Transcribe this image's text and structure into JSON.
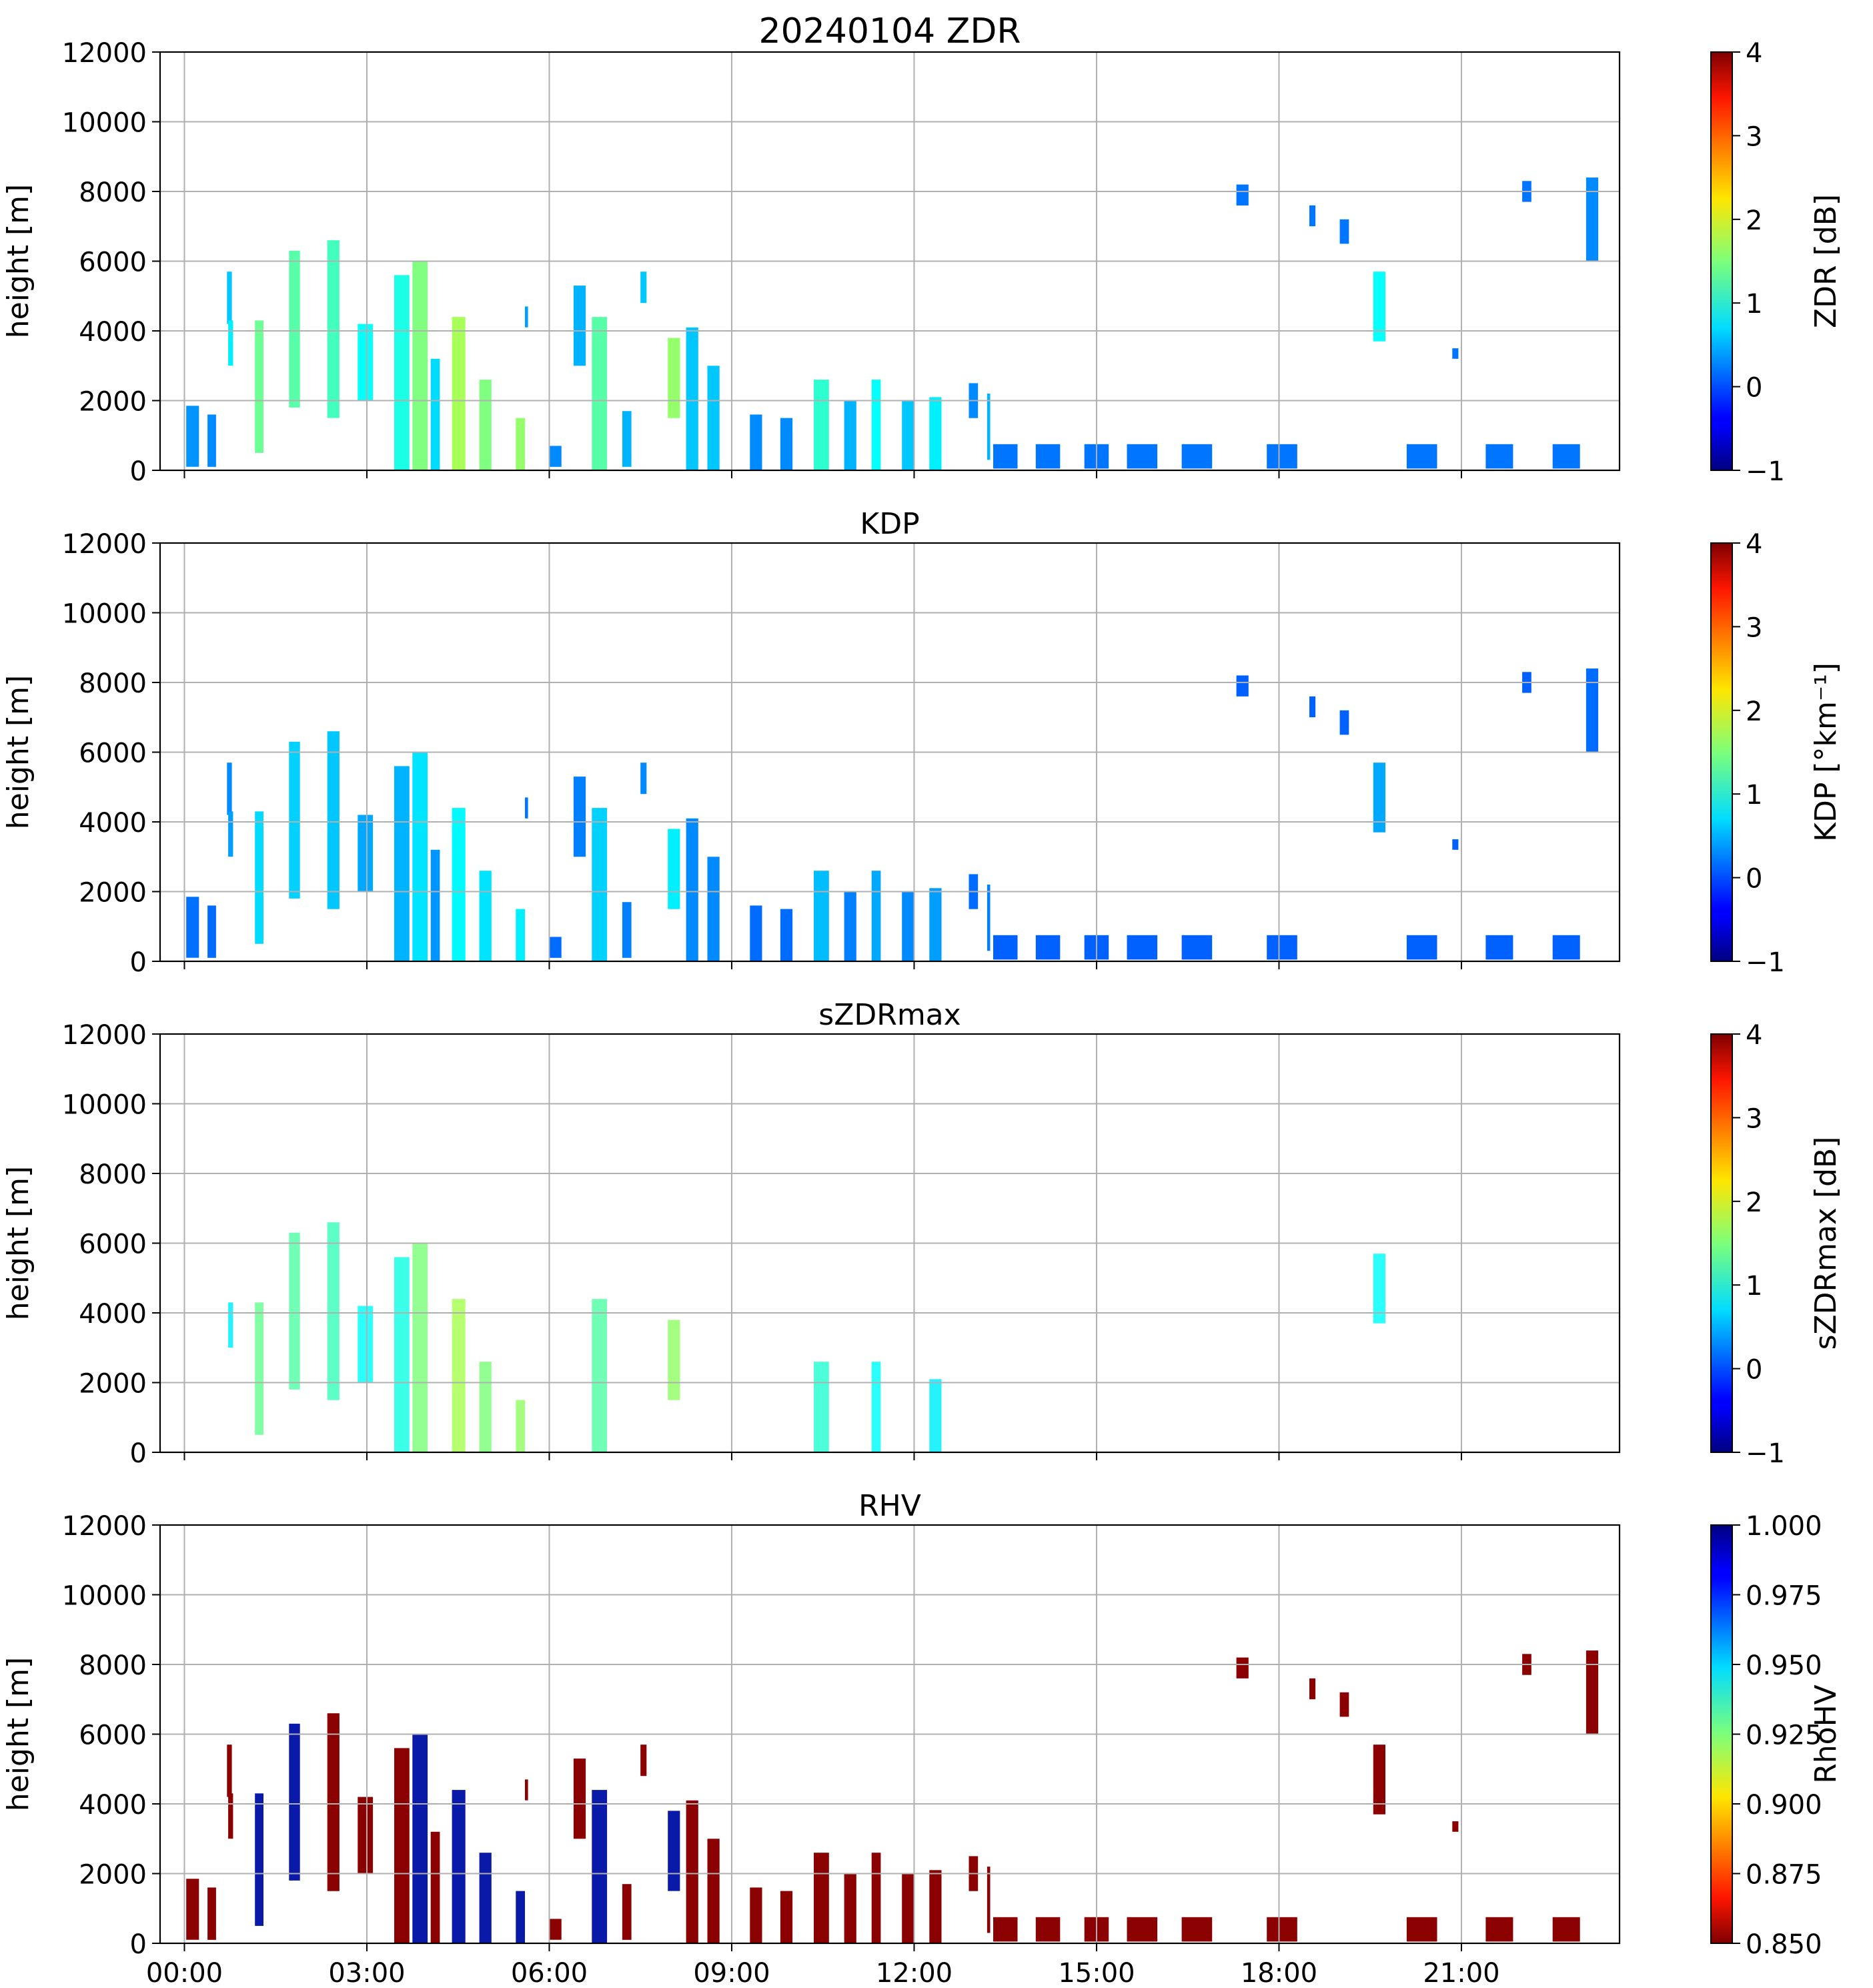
{
  "figure_title": "20240104 ZDR",
  "time_tick_labels": [
    "00:00",
    "03:00",
    "06:00",
    "09:00",
    "12:00",
    "15:00",
    "18:00",
    "21:00"
  ],
  "chart_data": [
    {
      "type": "heatmap",
      "title": "20240104 ZDR",
      "xlabel": "",
      "ylabel": "height [m]",
      "ylim": [
        0,
        12000
      ],
      "yticks": [
        "0",
        "2000",
        "4000",
        "6000",
        "8000",
        "10000",
        "12000"
      ],
      "xticks": [
        "00:00",
        "03:00",
        "06:00",
        "09:00",
        "12:00",
        "15:00",
        "18:00",
        "21:00"
      ],
      "grid": true,
      "colorbar": {
        "label": "ZDR [dB]",
        "colormap": "jet",
        "range": [
          -1,
          4
        ],
        "ticks": [
          "−1",
          "0",
          "1",
          "2",
          "3",
          "4"
        ]
      }
    },
    {
      "type": "heatmap",
      "title": "KDP",
      "xlabel": "",
      "ylabel": "height [m]",
      "ylim": [
        0,
        12000
      ],
      "yticks": [
        "0",
        "2000",
        "4000",
        "6000",
        "8000",
        "10000",
        "12000"
      ],
      "xticks": [
        "00:00",
        "03:00",
        "06:00",
        "09:00",
        "12:00",
        "15:00",
        "18:00",
        "21:00"
      ],
      "grid": true,
      "colorbar": {
        "label": "KDP [°km⁻¹]",
        "colormap": "jet",
        "range": [
          -1,
          4
        ],
        "ticks": [
          "−1",
          "0",
          "1",
          "2",
          "3",
          "4"
        ]
      }
    },
    {
      "type": "heatmap",
      "title": "sZDRmax",
      "xlabel": "",
      "ylabel": "height [m]",
      "ylim": [
        0,
        12000
      ],
      "yticks": [
        "0",
        "2000",
        "4000",
        "6000",
        "8000",
        "10000",
        "12000"
      ],
      "xticks": [
        "00:00",
        "03:00",
        "06:00",
        "09:00",
        "12:00",
        "15:00",
        "18:00",
        "21:00"
      ],
      "grid": true,
      "colorbar": {
        "label": "sZDRmax [dB]",
        "colormap": "jet",
        "range": [
          -1,
          4
        ],
        "ticks": [
          "−1",
          "0",
          "1",
          "2",
          "3",
          "4"
        ]
      }
    },
    {
      "type": "heatmap",
      "title": "RHV",
      "xlabel": "",
      "ylabel": "height [m]",
      "ylim": [
        0,
        12000
      ],
      "yticks": [
        "0",
        "2000",
        "4000",
        "6000",
        "8000",
        "10000",
        "12000"
      ],
      "xticks": [
        "00:00",
        "03:00",
        "06:00",
        "09:00",
        "12:00",
        "15:00",
        "18:00",
        "21:00"
      ],
      "grid": true,
      "colorbar": {
        "label": "RhoHV",
        "colormap": "jet_r",
        "range": [
          0.85,
          1.0
        ],
        "ticks": [
          "0.850",
          "0.875",
          "0.900",
          "0.925",
          "0.950",
          "0.975",
          "1.000"
        ]
      }
    }
  ],
  "echo_cells": [
    {
      "t0": 0.03,
      "t1": 0.24,
      "h0": 100,
      "h1": 1850,
      "v": 0.35
    },
    {
      "t0": 0.38,
      "t1": 0.52,
      "h0": 100,
      "h1": 1600,
      "v": 0.3
    },
    {
      "t0": 0.7,
      "t1": 0.78,
      "h0": 4200,
      "h1": 5700,
      "v": 0.6
    },
    {
      "t0": 0.72,
      "t1": 0.8,
      "h0": 3000,
      "h1": 4300,
      "v": 0.8
    },
    {
      "t0": 1.16,
      "t1": 1.3,
      "h0": 500,
      "h1": 4300,
      "v": 1.4
    },
    {
      "t0": 1.72,
      "t1": 1.9,
      "h0": 1800,
      "h1": 6300,
      "v": 1.3
    },
    {
      "t0": 2.35,
      "t1": 2.55,
      "h0": 1500,
      "h1": 6600,
      "v": 1.2
    },
    {
      "t0": 2.85,
      "t1": 3.1,
      "h0": 2000,
      "h1": 4200,
      "v": 0.9
    },
    {
      "t0": 3.45,
      "t1": 3.7,
      "h0": 0,
      "h1": 5600,
      "v": 1.0
    },
    {
      "t0": 3.75,
      "t1": 4.0,
      "h0": 0,
      "h1": 6000,
      "v": 1.5
    },
    {
      "t0": 4.05,
      "t1": 4.2,
      "h0": 0,
      "h1": 3200,
      "v": 0.7
    },
    {
      "t0": 4.4,
      "t1": 4.62,
      "h0": 0,
      "h1": 4400,
      "v": 1.7
    },
    {
      "t0": 4.85,
      "t1": 5.05,
      "h0": 0,
      "h1": 2600,
      "v": 1.5
    },
    {
      "t0": 5.45,
      "t1": 5.6,
      "h0": 0,
      "h1": 1500,
      "v": 1.6
    },
    {
      "t0": 5.6,
      "t1": 5.65,
      "h0": 4100,
      "h1": 4700,
      "v": 0.4
    },
    {
      "t0": 6.0,
      "t1": 6.2,
      "h0": 100,
      "h1": 700,
      "v": 0.3
    },
    {
      "t0": 6.4,
      "t1": 6.6,
      "h0": 3000,
      "h1": 5300,
      "v": 0.5
    },
    {
      "t0": 6.7,
      "t1": 6.95,
      "h0": 0,
      "h1": 4400,
      "v": 1.3
    },
    {
      "t0": 7.2,
      "t1": 7.35,
      "h0": 100,
      "h1": 1700,
      "v": 0.5
    },
    {
      "t0": 7.5,
      "t1": 7.6,
      "h0": 4800,
      "h1": 5700,
      "v": 0.6
    },
    {
      "t0": 7.95,
      "t1": 8.15,
      "h0": 1500,
      "h1": 3800,
      "v": 1.6
    },
    {
      "t0": 8.25,
      "t1": 8.45,
      "h0": 0,
      "h1": 4100,
      "v": 0.6
    },
    {
      "t0": 8.6,
      "t1": 8.8,
      "h0": 0,
      "h1": 3000,
      "v": 0.6
    },
    {
      "t0": 9.3,
      "t1": 9.5,
      "h0": 0,
      "h1": 1600,
      "v": 0.3
    },
    {
      "t0": 9.8,
      "t1": 10.0,
      "h0": 0,
      "h1": 1500,
      "v": 0.3
    },
    {
      "t0": 10.35,
      "t1": 10.6,
      "h0": 0,
      "h1": 2600,
      "v": 1.1
    },
    {
      "t0": 10.85,
      "t1": 11.05,
      "h0": 0,
      "h1": 2000,
      "v": 0.5
    },
    {
      "t0": 11.3,
      "t1": 11.45,
      "h0": 0,
      "h1": 2600,
      "v": 0.9
    },
    {
      "t0": 11.8,
      "t1": 12.0,
      "h0": 0,
      "h1": 2000,
      "v": 0.6
    },
    {
      "t0": 12.25,
      "t1": 12.45,
      "h0": 0,
      "h1": 2100,
      "v": 0.8
    },
    {
      "t0": 12.9,
      "t1": 13.05,
      "h0": 1500,
      "h1": 2500,
      "v": 0.3
    },
    {
      "t0": 13.2,
      "t1": 13.25,
      "h0": 300,
      "h1": 2200,
      "v": 0.5
    },
    {
      "t0": 13.3,
      "t1": 13.7,
      "h0": 50,
      "h1": 750,
      "v": 0.2
    },
    {
      "t0": 14.0,
      "t1": 14.4,
      "h0": 50,
      "h1": 750,
      "v": 0.2
    },
    {
      "t0": 14.8,
      "t1": 15.2,
      "h0": 50,
      "h1": 750,
      "v": 0.2
    },
    {
      "t0": 15.5,
      "t1": 16.0,
      "h0": 50,
      "h1": 750,
      "v": 0.2
    },
    {
      "t0": 16.4,
      "t1": 16.9,
      "h0": 50,
      "h1": 750,
      "v": 0.2
    },
    {
      "t0": 17.3,
      "t1": 17.5,
      "h0": 7600,
      "h1": 8200,
      "v": 0.2
    },
    {
      "t0": 17.8,
      "t1": 18.3,
      "h0": 50,
      "h1": 750,
      "v": 0.2
    },
    {
      "t0": 18.5,
      "t1": 18.6,
      "h0": 7000,
      "h1": 7600,
      "v": 0.2
    },
    {
      "t0": 19.0,
      "t1": 19.15,
      "h0": 6500,
      "h1": 7200,
      "v": 0.2
    },
    {
      "t0": 19.55,
      "t1": 19.75,
      "h0": 3700,
      "h1": 5700,
      "v": 0.9
    },
    {
      "t0": 20.1,
      "t1": 20.6,
      "h0": 50,
      "h1": 750,
      "v": 0.2
    },
    {
      "t0": 20.85,
      "t1": 20.95,
      "h0": 3200,
      "h1": 3500,
      "v": 0.2
    },
    {
      "t0": 21.4,
      "t1": 21.85,
      "h0": 50,
      "h1": 750,
      "v": 0.2
    },
    {
      "t0": 22.0,
      "t1": 22.15,
      "h0": 7700,
      "h1": 8300,
      "v": 0.2
    },
    {
      "t0": 22.5,
      "t1": 22.95,
      "h0": 50,
      "h1": 750,
      "v": 0.2
    },
    {
      "t0": 23.05,
      "t1": 23.25,
      "h0": 6000,
      "h1": 8400,
      "v": 0.3
    }
  ]
}
